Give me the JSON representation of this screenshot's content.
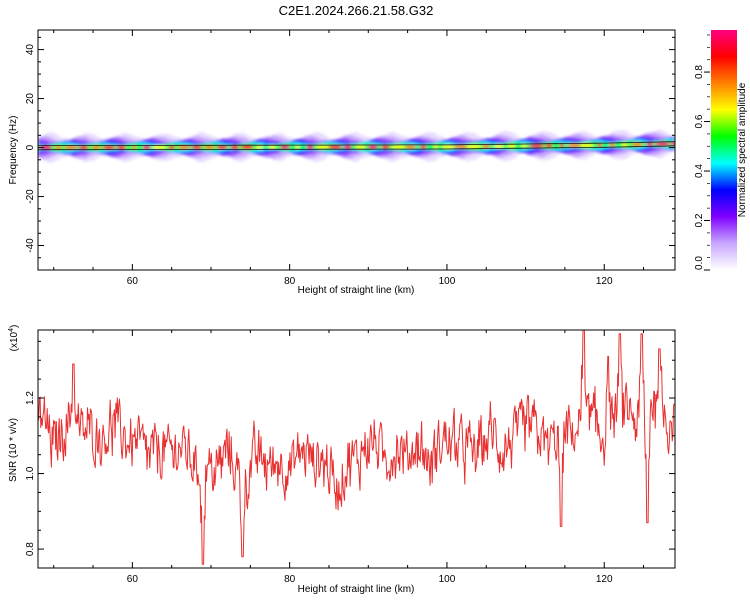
{
  "figure": {
    "title": "C2E1.2024.266.21.58.G32"
  },
  "chart_data": [
    {
      "type": "heatmap",
      "title": "C2E1.2024.266.21.58.G32",
      "xlabel": "Height of straight line (km)",
      "ylabel": "Frequency (Hz)",
      "xlim": [
        48,
        129
      ],
      "ylim": [
        -50,
        48
      ],
      "x_ticks": [
        60,
        80,
        100,
        120
      ],
      "y_ticks": [
        -40,
        -20,
        0,
        20,
        40
      ],
      "band_center_hz": [
        {
          "x": 48,
          "y": 0.0
        },
        {
          "x": 100,
          "y": 0.3
        },
        {
          "x": 120,
          "y": 1.0
        },
        {
          "x": 129,
          "y": 1.6
        }
      ],
      "colorbar": {
        "label": "Normalized spectral amplitude",
        "range": [
          0.0,
          0.97
        ],
        "ticks": [
          0.0,
          0.2,
          0.4,
          0.6,
          0.8
        ],
        "stops": [
          "#ffffff",
          "#c8a8ff",
          "#8000ff",
          "#0000ff",
          "#00ffff",
          "#00ff00",
          "#ffff00",
          "#ff8000",
          "#ff0000",
          "#ff0080"
        ]
      }
    },
    {
      "type": "line",
      "xlabel": "Height of straight line (km)",
      "ylabel": "SNR (10 * v/v)",
      "y_multiplier_label": "(x10",
      "y_multiplier_exp": "4",
      "y_multiplier_close": ")",
      "xlim": [
        48,
        129
      ],
      "ylim": [
        0.75,
        1.38
      ],
      "x_ticks": [
        60,
        80,
        100,
        120
      ],
      "y_ticks": [
        0.8,
        1.0,
        1.2
      ],
      "line_color": "#e83030",
      "envelope_x": [
        48,
        50,
        52,
        55,
        58,
        60,
        63,
        66,
        68,
        70,
        72,
        74,
        76,
        78,
        80,
        83,
        86,
        88,
        90,
        93,
        96,
        98,
        100,
        103,
        106,
        108,
        110,
        113,
        116,
        118,
        120,
        122,
        124,
        126,
        129
      ],
      "envelope_y": [
        1.16,
        1.08,
        1.13,
        1.1,
        1.12,
        1.08,
        1.05,
        1.07,
        1.03,
        1.0,
        1.06,
        0.97,
        1.04,
        1.02,
        1.03,
        1.06,
        0.98,
        1.03,
        1.08,
        1.05,
        1.07,
        1.04,
        1.09,
        1.05,
        1.1,
        1.07,
        1.13,
        1.08,
        1.12,
        1.15,
        1.1,
        1.18,
        1.13,
        1.19,
        1.14
      ],
      "amplitude": 0.11,
      "spikes": [
        {
          "x": 69.0,
          "y": 0.76
        },
        {
          "x": 74.0,
          "y": 0.78
        },
        {
          "x": 117.4,
          "y": 1.38
        },
        {
          "x": 120.5,
          "y": 1.31
        },
        {
          "x": 122.0,
          "y": 1.37
        },
        {
          "x": 124.8,
          "y": 1.37
        },
        {
          "x": 127.0,
          "y": 1.33
        },
        {
          "x": 114.5,
          "y": 0.86
        },
        {
          "x": 125.5,
          "y": 0.87
        },
        {
          "x": 52.5,
          "y": 1.29
        }
      ]
    }
  ]
}
